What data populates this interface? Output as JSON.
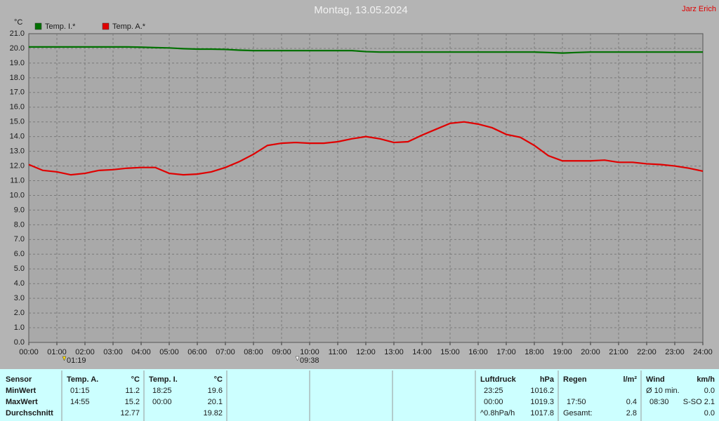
{
  "chart_data": {
    "type": "line",
    "title": "Montag, 13.05.2024",
    "y_unit": "°C",
    "grid": true,
    "x": [
      0,
      0.5,
      1,
      1.5,
      2,
      2.5,
      3,
      3.5,
      4,
      4.5,
      5,
      5.5,
      6,
      6.5,
      7,
      7.5,
      8,
      8.5,
      9,
      9.5,
      10,
      10.5,
      11,
      11.5,
      12,
      12.5,
      13,
      13.5,
      14,
      14.5,
      15,
      15.5,
      16,
      16.5,
      17,
      17.5,
      18,
      18.5,
      19,
      19.5,
      20,
      20.5,
      21,
      21.5,
      22,
      22.5,
      23,
      23.5,
      24
    ],
    "series": [
      {
        "name": "Temp. I.*",
        "color": "#007000",
        "values": [
          20.1,
          20.1,
          20.1,
          20.1,
          20.1,
          20.1,
          20.1,
          20.1,
          20.08,
          20.05,
          20.03,
          19.98,
          19.95,
          19.95,
          19.93,
          19.88,
          19.85,
          19.85,
          19.85,
          19.85,
          19.85,
          19.85,
          19.85,
          19.85,
          19.78,
          19.75,
          19.75,
          19.75,
          19.75,
          19.75,
          19.75,
          19.75,
          19.75,
          19.75,
          19.75,
          19.75,
          19.75,
          19.72,
          19.68,
          19.72,
          19.75,
          19.75,
          19.75,
          19.75,
          19.75,
          19.75,
          19.75,
          19.75,
          19.75
        ]
      },
      {
        "name": "Temp. A.*",
        "color": "#e00000",
        "values": [
          12.1,
          11.7,
          11.6,
          11.4,
          11.5,
          11.7,
          11.75,
          11.85,
          11.9,
          11.9,
          11.5,
          11.4,
          11.45,
          11.6,
          11.9,
          12.3,
          12.8,
          13.4,
          13.55,
          13.6,
          13.55,
          13.55,
          13.65,
          13.85,
          14.0,
          13.85,
          13.6,
          13.65,
          14.1,
          14.5,
          14.9,
          15.0,
          14.85,
          14.6,
          14.15,
          13.95,
          13.4,
          12.7,
          12.35,
          12.35,
          12.35,
          12.4,
          12.25,
          12.25,
          12.15,
          12.1,
          12.0,
          11.85,
          11.65
        ]
      }
    ],
    "xlim": [
      0,
      24
    ],
    "xticks": [
      {
        "value": 0,
        "label": "00:00"
      },
      {
        "value": 1,
        "label": "01:00"
      },
      {
        "value": 2,
        "label": "02:00"
      },
      {
        "value": 3,
        "label": "03:00"
      },
      {
        "value": 4,
        "label": "04:00"
      },
      {
        "value": 5,
        "label": "05:00"
      },
      {
        "value": 6,
        "label": "06:00"
      },
      {
        "value": 7,
        "label": "07:00"
      },
      {
        "value": 8,
        "label": "08:00"
      },
      {
        "value": 9,
        "label": "09:00"
      },
      {
        "value": 10,
        "label": "10:00"
      },
      {
        "value": 11,
        "label": "11:00"
      },
      {
        "value": 12,
        "label": "12:00"
      },
      {
        "value": 13,
        "label": "13:00"
      },
      {
        "value": 14,
        "label": "14:00"
      },
      {
        "value": 15,
        "label": "15:00"
      },
      {
        "value": 16,
        "label": "16:00"
      },
      {
        "value": 17,
        "label": "17:00"
      },
      {
        "value": 18,
        "label": "18:00"
      },
      {
        "value": 19,
        "label": "19:00"
      },
      {
        "value": 20,
        "label": "20:00"
      },
      {
        "value": 21,
        "label": "21:00"
      },
      {
        "value": 22,
        "label": "22:00"
      },
      {
        "value": 23,
        "label": "23:00"
      },
      {
        "value": 24,
        "label": "24:00"
      }
    ],
    "ylim": [
      0,
      21
    ],
    "yticks": [
      {
        "value": 0,
        "label": "0.0"
      },
      {
        "value": 1,
        "label": "1.0"
      },
      {
        "value": 2,
        "label": "2.0"
      },
      {
        "value": 3,
        "label": "3.0"
      },
      {
        "value": 4,
        "label": "4.0"
      },
      {
        "value": 5,
        "label": "5.0"
      },
      {
        "value": 6,
        "label": "6.0"
      },
      {
        "value": 7,
        "label": "7.0"
      },
      {
        "value": 8,
        "label": "8.0"
      },
      {
        "value": 9,
        "label": "9.0"
      },
      {
        "value": 10,
        "label": "10.0"
      },
      {
        "value": 11,
        "label": "11.0"
      },
      {
        "value": 12,
        "label": "12.0"
      },
      {
        "value": 13,
        "label": "13.0"
      },
      {
        "value": 14,
        "label": "14.0"
      },
      {
        "value": 15,
        "label": "15.0"
      },
      {
        "value": 16,
        "label": "16.0"
      },
      {
        "value": 17,
        "label": "17.0"
      },
      {
        "value": 18,
        "label": "18.0"
      },
      {
        "value": 19,
        "label": "19.0"
      },
      {
        "value": 20,
        "label": "20.0"
      },
      {
        "value": 21,
        "label": "21.0"
      }
    ]
  },
  "author": "Jarz Erich",
  "sun_events": [
    "01:19",
    "09:38"
  ],
  "table": {
    "row_labels": [
      "Sensor",
      "MinWert",
      "MaxWert",
      "Durchschnitt"
    ],
    "groups": [
      {
        "title": "Temp. A.",
        "unit": "°C",
        "cells": [
          [
            "01:15",
            "11.2"
          ],
          [
            "14:55",
            "15.2"
          ],
          [
            null,
            "12.77"
          ]
        ]
      },
      {
        "title": "Temp. I.",
        "unit": "°C",
        "cells": [
          [
            "18:25",
            "19.6"
          ],
          [
            "00:00",
            "20.1"
          ],
          [
            null,
            "19.82"
          ]
        ]
      },
      {
        "title": "Luftdruck",
        "unit": "hPa",
        "cells": [
          [
            "23:25",
            "1016.2"
          ],
          [
            "00:00",
            "1019.3"
          ],
          [
            "^0.8hPa/h",
            "1017.8"
          ]
        ]
      },
      {
        "title": "Regen",
        "unit": "l/m²",
        "cells": [
          [
            null,
            null
          ],
          [
            "17:50",
            "0.4"
          ],
          [
            "Gesamt:",
            "2.8"
          ]
        ]
      },
      {
        "title": "Wind",
        "unit": "km/h",
        "cells": [
          [
            "Ø 10 min.",
            "0.0"
          ],
          [
            "08:30",
            "S-SO 2.1"
          ],
          [
            null,
            "0.0"
          ]
        ]
      }
    ]
  }
}
